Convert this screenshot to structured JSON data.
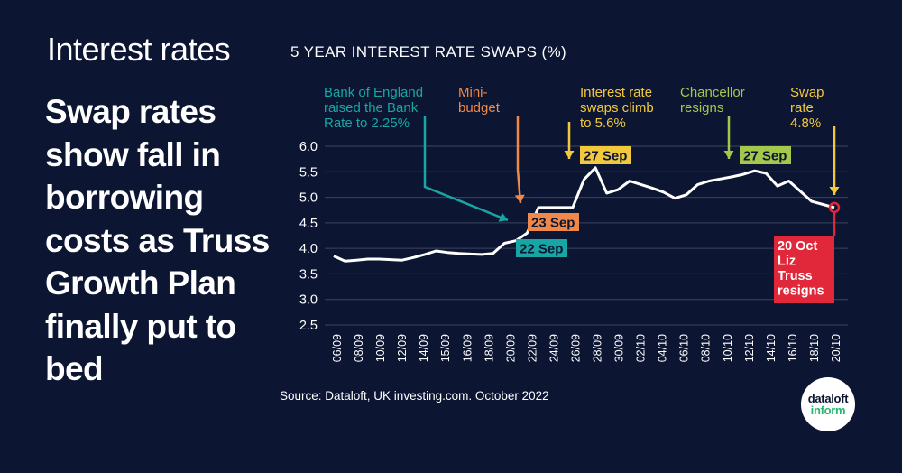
{
  "section_label": "Interest rates",
  "headline": "Swap rates show fall in borrowing costs as Truss Growth Plan finally put to bed",
  "source": "Source: Dataloft, UK investing.com. October 2022",
  "logo": {
    "top": "dataloft",
    "bottom": "inform"
  },
  "colors": {
    "background": "#0c1532",
    "line": "#ffffff",
    "teal": "#17a6a3",
    "orange": "#f0884a",
    "yellow": "#f2c93c",
    "green": "#a3c84b",
    "red": "#e0283a"
  },
  "chart_data": {
    "type": "line",
    "title": "5 YEAR INTEREST RATE SWAPS (%)",
    "ylim": [
      2.5,
      6.0
    ],
    "y_ticks": [
      "6.0",
      "5.5",
      "5.0",
      "4.5",
      "4.0",
      "3.5",
      "3.0",
      "2.5"
    ],
    "x_tick_labels": [
      "06/09",
      "08/09",
      "10/09",
      "12/09",
      "14/09",
      "15/09",
      "16/09",
      "18/09",
      "20/09",
      "22/09",
      "24/09",
      "26/09",
      "28/09",
      "30/09",
      "02/10",
      "04/10",
      "06/10",
      "08/10",
      "10/10",
      "12/10",
      "14/10",
      "16/10",
      "18/10",
      "20/10"
    ],
    "series": [
      {
        "values": [
          3.85,
          3.75,
          3.77,
          3.79,
          3.79,
          3.78,
          3.77,
          3.82,
          3.88,
          3.95,
          3.92,
          3.9,
          3.89,
          3.88,
          3.9,
          4.1,
          4.15,
          4.3,
          4.8,
          4.8,
          4.8,
          4.8,
          5.35,
          5.58,
          5.08,
          5.15,
          5.32,
          5.25,
          5.18,
          5.1,
          4.98,
          5.05,
          5.25,
          5.32,
          5.36,
          5.4,
          5.45,
          5.52,
          5.47,
          5.22,
          5.32,
          5.12,
          4.92,
          4.86,
          4.8
        ]
      }
    ],
    "annotations": [
      {
        "id": "boe",
        "text": [
          "Bank of England",
          "raised the Bank",
          "Rate to 2.25%"
        ],
        "date_label": "22 Sep",
        "color": "teal"
      },
      {
        "id": "mini",
        "text": [
          "Mini-",
          "budget"
        ],
        "date_label": "23 Sep",
        "color": "orange"
      },
      {
        "id": "swaps",
        "text": [
          "Interest rate",
          "swaps climb",
          "to 5.6%"
        ],
        "date_label": "27 Sep",
        "color": "yellow"
      },
      {
        "id": "chancellor",
        "text": [
          "Chancellor",
          "resigns"
        ],
        "date_label": "27 Sep",
        "color": "green"
      },
      {
        "id": "swaprate",
        "text": [
          "Swap",
          "rate",
          "4.8%"
        ],
        "date_label": "",
        "color": "yellow"
      },
      {
        "id": "truss",
        "text": [
          "20 Oct",
          "Liz",
          "Truss",
          "resigns"
        ],
        "date_label": "",
        "color": "red"
      }
    ]
  }
}
